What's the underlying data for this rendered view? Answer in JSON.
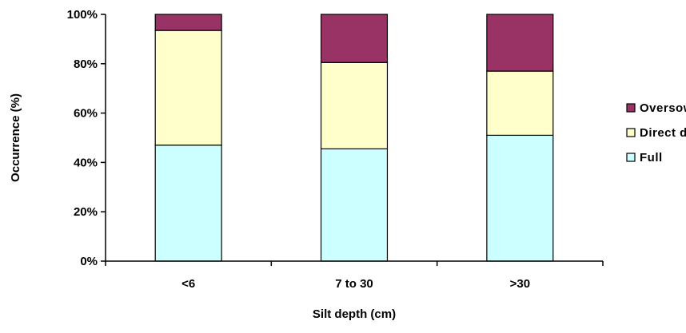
{
  "chart_data": {
    "type": "bar",
    "stacked": true,
    "percent": true,
    "categories": [
      "<6",
      "7 to 30",
      ">30"
    ],
    "series": [
      {
        "name": "Full",
        "color": "#ccffff",
        "values": [
          47,
          45.5,
          51
        ]
      },
      {
        "name": "Direct drill",
        "color": "#ffffcc",
        "values": [
          46.5,
          35,
          26
        ]
      },
      {
        "name": "Oversown",
        "color": "#993366",
        "values": [
          6.5,
          19.5,
          23
        ]
      }
    ],
    "xlabel": "Silt depth (cm)",
    "ylabel": "Occurrence (%)",
    "ylim": [
      0,
      100
    ],
    "yticks": [
      "0%",
      "20%",
      "40%",
      "60%",
      "80%",
      "100%"
    ],
    "grid": false,
    "legend": {
      "position": "right",
      "order": [
        "Oversown",
        "Direct drill",
        "Full"
      ]
    }
  }
}
